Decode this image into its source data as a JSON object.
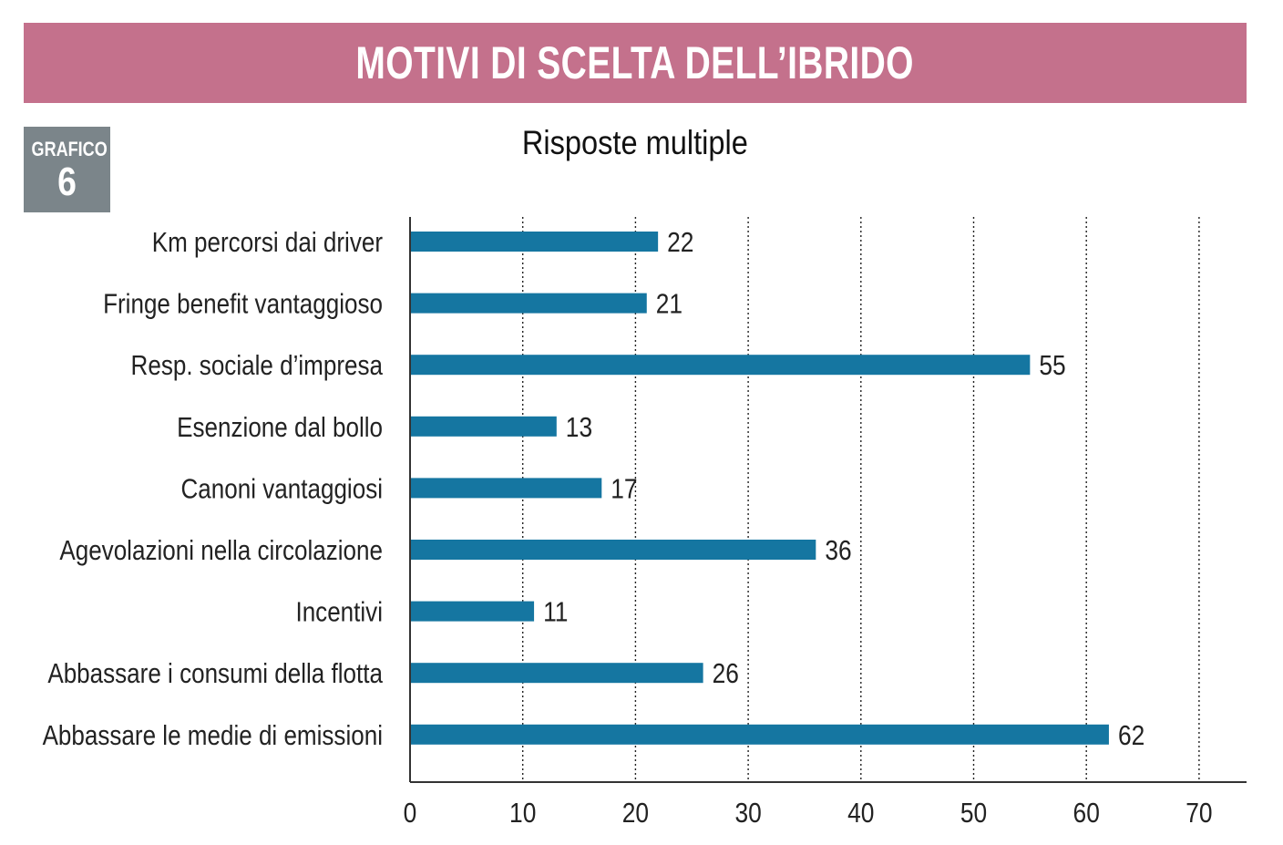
{
  "header": {
    "title": "MOTIVI DI SCELTA DELL’IBRIDO"
  },
  "badge": {
    "label": "GRAFICO",
    "number": "6"
  },
  "colors": {
    "title_band": "#c4718c",
    "badge": "#7b858a",
    "bar": "#1576a1"
  },
  "chart_data": {
    "type": "bar",
    "orientation": "horizontal",
    "subtitle": "Risposte multiple",
    "categories": [
      "Km percorsi dai driver",
      "Fringe benefit vantaggioso",
      "Resp. sociale d’impresa",
      "Esenzione dal bollo",
      "Canoni vantaggiosi",
      "Agevolazioni nella circolazione",
      "Incentivi",
      "Abbassare i consumi della flotta",
      "Abbassare le medie di emissioni"
    ],
    "values": [
      22,
      21,
      55,
      13,
      17,
      36,
      11,
      26,
      62
    ],
    "xlim": [
      0,
      70
    ],
    "xticks": [
      0,
      10,
      20,
      30,
      40,
      50,
      60,
      70
    ],
    "grid": "vertical dotted",
    "data_labels": true
  }
}
